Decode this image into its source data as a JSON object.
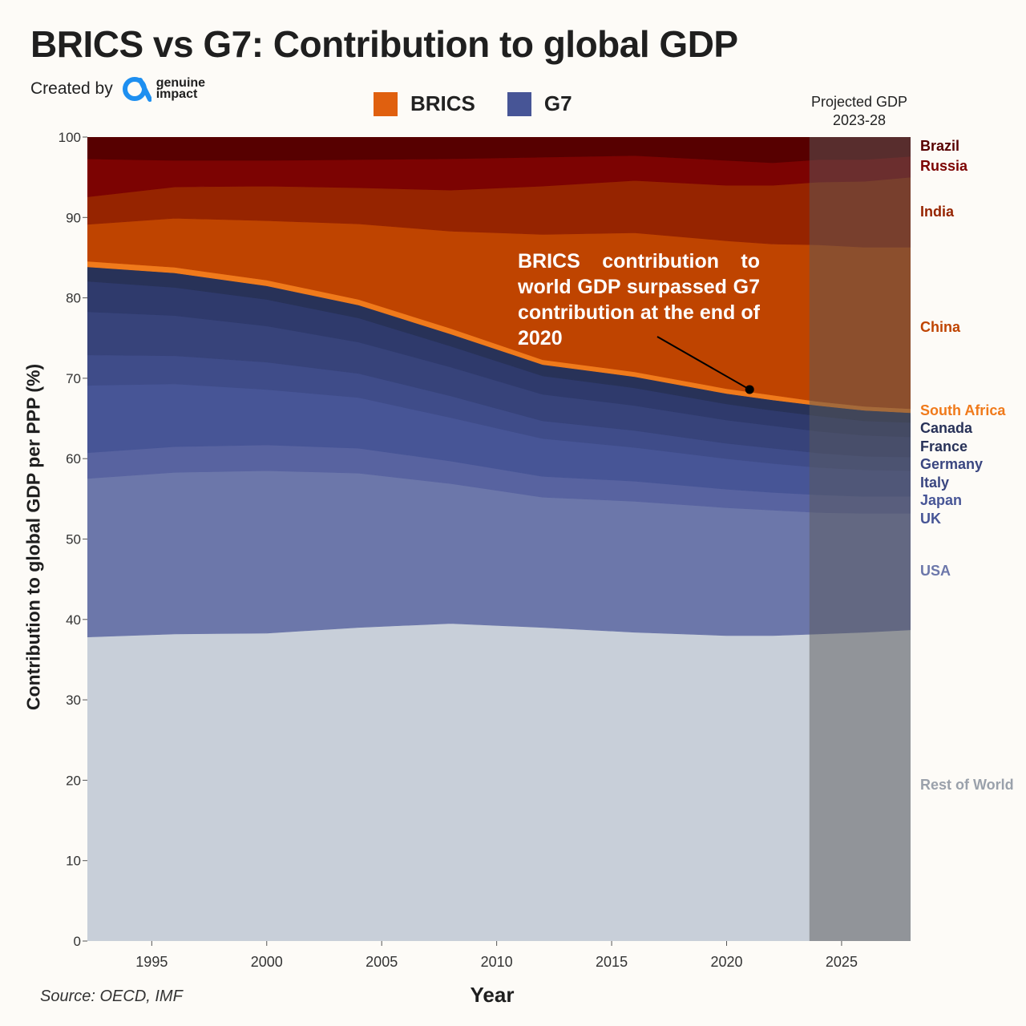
{
  "header": {
    "title": "BRICS vs G7: Contribution to global GDP",
    "created_by": "Created by",
    "logo_line1": "genuine",
    "logo_line2": "impact"
  },
  "legend": [
    {
      "label": "BRICS",
      "color": "#e0600f"
    },
    {
      "label": "G7",
      "color": "#475596"
    }
  ],
  "projection_label": [
    "Projected GDP",
    "2023-28"
  ],
  "annotation": "BRICS contribution to world GDP surpassed G7 contribution at the end of 2020",
  "source": "Source: OECD, IMF",
  "colors": {
    "Rest of World": "#c8cfd9",
    "USA": "#6c77aa",
    "UK": "#5863a0",
    "Japan": "#475596",
    "Italy": "#3f4c89",
    "Germany": "#37437a",
    "France": "#2f3a6c",
    "Canada": "#283258",
    "South Africa": "#f07a1b",
    "China": "#bf4400",
    "India": "#962400",
    "Russia": "#7c0302",
    "Brazil": "#570000",
    "projection_overlay": "#5a5a5a",
    "BRICS_label": "#e0600f",
    "G7_label": "#2f3a6c"
  },
  "chart_data": {
    "type": "area",
    "stacked": true,
    "xlabel": "Year",
    "ylabel": "Contribution to global GDP per PPP (%)",
    "ylim": [
      0,
      100
    ],
    "xlim": [
      1992.2,
      2028
    ],
    "x_ticks": [
      1995,
      2000,
      2005,
      2010,
      2015,
      2020,
      2025
    ],
    "y_ticks": [
      0,
      10,
      20,
      30,
      40,
      50,
      60,
      70,
      80,
      90,
      100
    ],
    "projected_range": [
      2023.6,
      2028
    ],
    "annotation_point": [
      2021,
      68.6
    ],
    "x": [
      1992,
      1996,
      2000,
      2004,
      2008,
      2012,
      2016,
      2020,
      2022,
      2024,
      2026,
      2028
    ],
    "series": [
      {
        "name": "Rest of World",
        "values": [
          37.8,
          38.2,
          38.3,
          39.0,
          39.5,
          39.0,
          38.4,
          38.0,
          38.0,
          38.2,
          38.4,
          38.7
        ]
      },
      {
        "name": "USA",
        "values": [
          19.7,
          20.1,
          20.2,
          19.2,
          17.4,
          16.2,
          16.3,
          15.9,
          15.6,
          15.1,
          14.8,
          14.5
        ]
      },
      {
        "name": "UK",
        "values": [
          3.2,
          3.2,
          3.2,
          3.1,
          2.8,
          2.6,
          2.5,
          2.3,
          2.2,
          2.2,
          2.1,
          2.1
        ]
      },
      {
        "name": "Japan",
        "values": [
          8.4,
          7.8,
          6.9,
          6.3,
          5.4,
          4.7,
          4.2,
          3.8,
          3.6,
          3.4,
          3.3,
          3.2
        ]
      },
      {
        "name": "Italy",
        "values": [
          3.8,
          3.5,
          3.4,
          3.0,
          2.7,
          2.2,
          2.1,
          1.9,
          1.9,
          1.8,
          1.7,
          1.7
        ]
      },
      {
        "name": "Germany",
        "values": [
          5.4,
          5.0,
          4.5,
          3.9,
          3.6,
          3.3,
          3.1,
          2.9,
          2.8,
          2.7,
          2.6,
          2.5
        ]
      },
      {
        "name": "France",
        "values": [
          3.8,
          3.5,
          3.3,
          3.0,
          2.6,
          2.3,
          2.2,
          2.0,
          1.9,
          1.9,
          1.8,
          1.8
        ]
      },
      {
        "name": "Canada",
        "values": [
          1.8,
          1.8,
          1.7,
          1.6,
          1.5,
          1.4,
          1.4,
          1.3,
          1.3,
          1.3,
          1.3,
          1.2
        ]
      },
      {
        "name": "South Africa",
        "values": [
          0.7,
          0.7,
          0.7,
          0.7,
          0.7,
          0.6,
          0.6,
          0.6,
          0.6,
          0.5,
          0.5,
          0.5
        ]
      },
      {
        "name": "China",
        "values": [
          4.5,
          6.1,
          7.4,
          9.4,
          12.1,
          15.6,
          17.3,
          18.4,
          18.8,
          19.5,
          19.8,
          20.1
        ]
      },
      {
        "name": "India",
        "values": [
          3.4,
          3.9,
          4.3,
          4.5,
          5.1,
          6.0,
          6.5,
          6.9,
          7.3,
          7.8,
          8.2,
          8.7
        ]
      },
      {
        "name": "Russia",
        "values": [
          4.8,
          3.3,
          3.2,
          3.5,
          3.9,
          3.6,
          3.1,
          3.1,
          2.8,
          2.8,
          2.7,
          2.6
        ]
      },
      {
        "name": "Brazil",
        "values": [
          2.7,
          2.9,
          2.9,
          2.8,
          2.7,
          2.5,
          2.3,
          2.9,
          3.2,
          2.8,
          2.8,
          2.4
        ]
      }
    ]
  }
}
